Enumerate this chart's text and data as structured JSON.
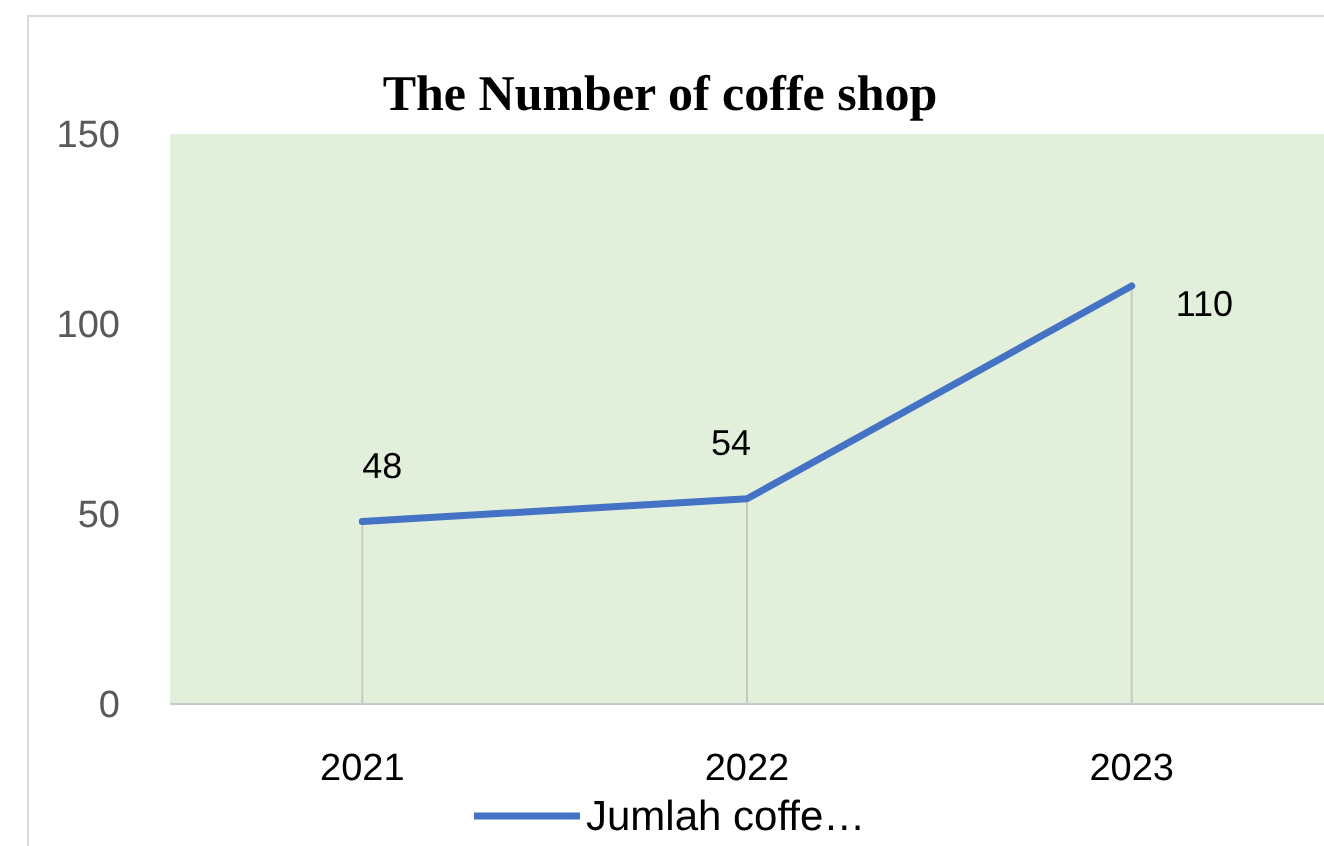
{
  "chart_data": {
    "type": "line",
    "title": "The Number of coffe shop",
    "categories": [
      "2021",
      "2022",
      "2023"
    ],
    "series": [
      {
        "name": "Jumlah coffe…",
        "color": "#4472c4",
        "values": [
          48,
          54,
          110
        ]
      }
    ],
    "ylim": [
      0,
      150
    ],
    "yticks": [
      0,
      50,
      100,
      150
    ],
    "grid": "x",
    "legend": "bottom",
    "data_labels": true,
    "marker": "none",
    "line_style": "solid"
  }
}
